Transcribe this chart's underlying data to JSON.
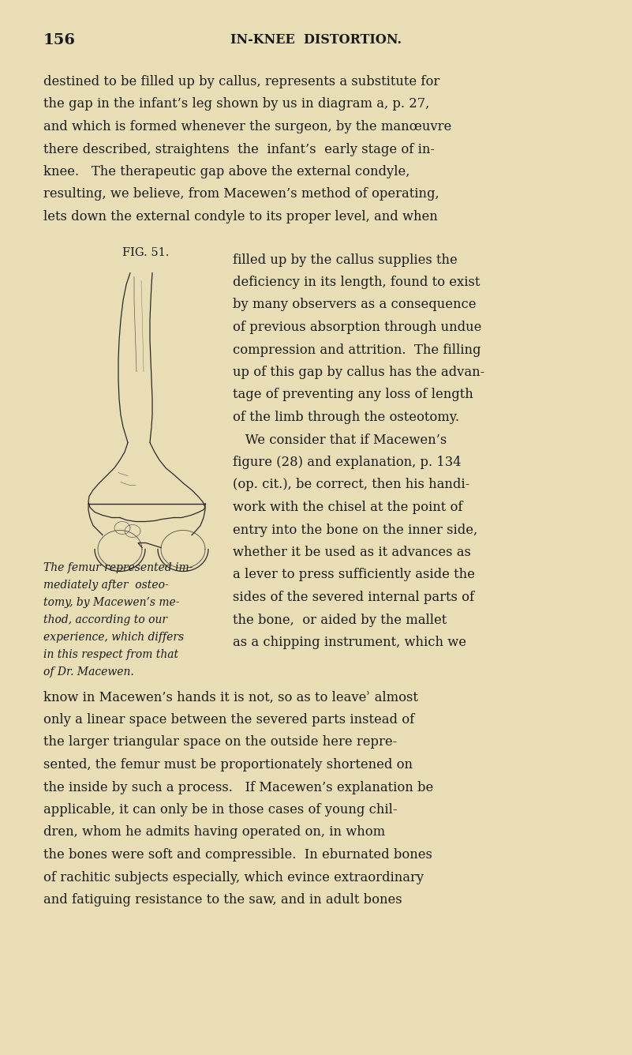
{
  "background_color": "#e8ddb5",
  "page_number": "156",
  "header": "IN-KNEE  DISTORTION.",
  "fig_label": "FIG. 51.",
  "fig_caption_lines": [
    "The femur represented im-",
    "mediately after  osteo-",
    "tomy, by Macewen’s me-",
    "thod, according to our",
    "experience, which differs",
    "in this respect from that",
    "of Dr. Macewen."
  ],
  "body_text_lines": [
    "destined to be filled up by callus, represents a substitute for",
    "the gap in the infant’s leg shown by us in diagram a, p. 27,",
    "and which is formed whenever the surgeon, by the manœuvre",
    "there described, straightens  the  infant’s  early stage of in-",
    "knee.   The therapeutic gap above the external condyle,",
    "resulting, we believe, from Macewen’s method of operating,",
    "lets down the external condyle to its proper level, and when"
  ],
  "right_col_lines": [
    "filled up by the callus supplies the",
    "deficiency in its length, found to exist",
    "by many observers as a consequence",
    "of previous absorption through undue",
    "compression and attrition.  The filling",
    "up of this gap by callus has the advan-",
    "tage of preventing any loss of length",
    "of the limb through the osteotomy.",
    "   We consider that if Macewen’s",
    "figure (28) and explanation, p. 134",
    "(op. cit.), be correct, then his handi-",
    "work with the chisel at the point of",
    "entry into the bone on the inner side,",
    "whether it be used as it advances as",
    "a lever to press sufficiently aside the",
    "sides of the severed internal parts of",
    "the bone,  or aided by the mallet",
    "as a chipping instrument, which we"
  ],
  "bottom_text_lines": [
    "know in Macewen’s hands it is not, so as to leaveʾ almost",
    "only a linear space between the severed parts instead of",
    "the larger triangular space on the outside here repre-",
    "sented, the femur must be proportionately shortened on",
    "the inside by such a process.   If Macewen’s explanation be",
    "applicable, it can only be in those cases of young chil-",
    "dren, whom he admits having operated on, in whom",
    "the bones were soft and compressible.  In eburnated bones",
    "of rachitic subjects especially, which evince extraordinary",
    "and fatiguing resistance to the saw, and in adult bones"
  ],
  "text_color": "#1a1a1a",
  "body_font_size": 11.8,
  "header_font_size": 11.5,
  "page_num_font_size": 14,
  "fig_label_font_size": 10.5,
  "caption_font_size": 10.0
}
